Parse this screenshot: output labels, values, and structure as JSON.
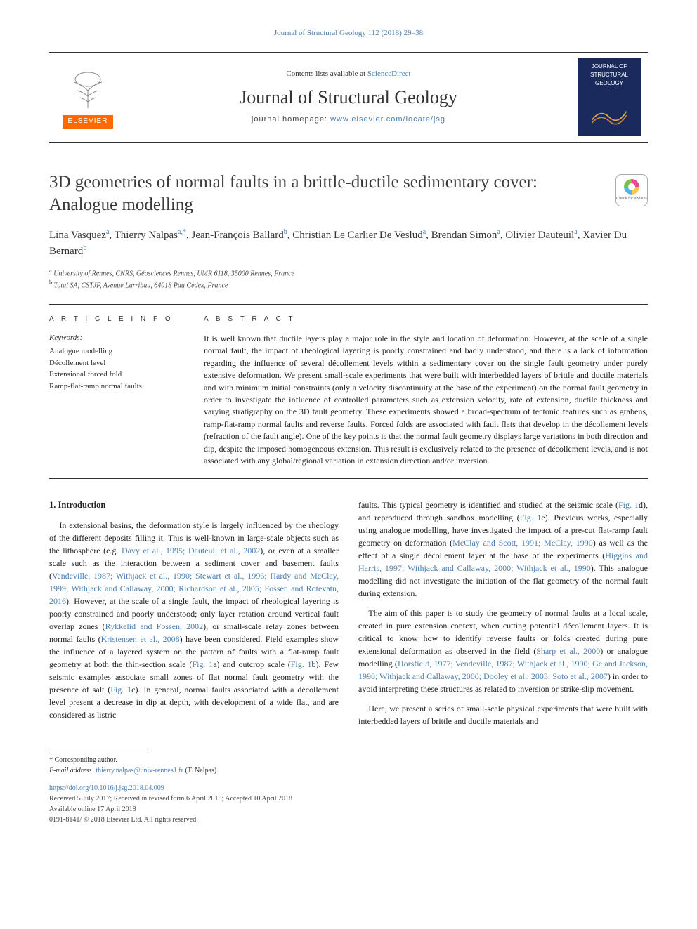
{
  "running_header": "Journal of Structural Geology 112 (2018) 29–38",
  "masthead": {
    "contents_prefix": "Contents lists available at ",
    "contents_link": "ScienceDirect",
    "journal_name": "Journal of Structural Geology",
    "homepage_label": "journal homepage: ",
    "homepage_url": "www.elsevier.com/locate/jsg",
    "publisher_label": "ELSEVIER",
    "cover_text": "JOURNAL OF STRUCTURAL GEOLOGY"
  },
  "check_updates_label": "Check for updates",
  "title": "3D geometries of normal faults in a brittle-ductile sedimentary cover: Analogue modelling",
  "authors_html": "Lina Vasquez<sup>a</sup>, Thierry Nalpas<sup>a,*</sup>, Jean-François Ballard<sup>b</sup>, Christian Le Carlier De Veslud<sup>a</sup>, Brendan Simon<sup>a</sup>, Olivier Dauteuil<sup>a</sup>, Xavier Du Bernard<sup>b</sup>",
  "affiliations": [
    {
      "sup": "a",
      "text": "University of Rennes, CNRS, Géosciences Rennes, UMR 6118, 35000 Rennes, France"
    },
    {
      "sup": "b",
      "text": "Total SA, CSTJF, Avenue Larribau, 64018 Pau Cedex, France"
    }
  ],
  "labels": {
    "article_info": "A R T I C L E  I N F O",
    "abstract": "A B S T R A C T",
    "keywords": "Keywords:"
  },
  "keywords": [
    "Analogue modelling",
    "Décollement level",
    "Extensional forced fold",
    "Ramp-flat-ramp normal faults"
  ],
  "abstract": "It is well known that ductile layers play a major role in the style and location of deformation. However, at the scale of a single normal fault, the impact of rheological layering is poorly constrained and badly understood, and there is a lack of information regarding the influence of several décollement levels within a sedimentary cover on the single fault geometry under purely extensive deformation. We present small-scale experiments that were built with interbedded layers of brittle and ductile materials and with minimum initial constraints (only a velocity discontinuity at the base of the experiment) on the normal fault geometry in order to investigate the influence of controlled parameters such as extension velocity, rate of extension, ductile thickness and varying stratigraphy on the 3D fault geometry. These experiments showed a broad-spectrum of tectonic features such as grabens, ramp-flat-ramp normal faults and reverse faults. Forced folds are associated with fault flats that develop in the décollement levels (refraction of the fault angle). One of the key points is that the normal fault geometry displays large variations in both direction and dip, despite the imposed homogeneous extension. This result is exclusively related to the presence of décollement levels, and is not associated with any global/regional variation in extension direction and/or inversion.",
  "section_heading": "1. Introduction",
  "col_left": {
    "p1a": "In extensional basins, the deformation style is largely influenced by the rheology of the different deposits filling it. This is well-known in large-scale objects such as the lithosphere (e.g. ",
    "p1_link1": "Davy et al., 1995; Dauteuil et al., 2002",
    "p1b": "), or even at a smaller scale such as the interaction between a sediment cover and basement faults (",
    "p1_link2": "Vendeville, 1987; Withjack et al., 1990; Stewart et al., 1996; Hardy and McClay, 1999; Withjack and Callaway, 2000; Richardson et al., 2005; Fossen and Rotevatn, 2016",
    "p1c": "). However, at the scale of a single fault, the impact of rheological layering is poorly constrained and poorly understood; only layer rotation around vertical fault overlap zones (",
    "p1_link3": "Rykkelid and Fossen, 2002",
    "p1d": "), or small-scale relay zones between normal faults (",
    "p1_link4": "Kristensen et al., 2008",
    "p1e": ") have been considered. Field examples show the influence of a layered system on the pattern of faults with a flat-ramp fault geometry at both the thin-section scale (",
    "p1_link5": "Fig. 1",
    "p1f": "a) and outcrop scale (",
    "p1_link6": "Fig. 1",
    "p1g": "b). Few seismic examples associate small zones of flat normal fault geometry with the presence of salt (",
    "p1_link7": "Fig. 1",
    "p1h": "c). In general, normal faults associated with a décollement level present a decrease in dip at depth, with development of a wide flat, and are considered as listric"
  },
  "col_right": {
    "p2a": "faults. This typical geometry is identified and studied at the seismic scale (",
    "p2_link1": "Fig. 1",
    "p2b": "d), and reproduced through sandbox modelling (",
    "p2_link2": "Fig. 1",
    "p2c": "e). Previous works, especially using analogue modelling, have investigated the impact of a pre-cut flat-ramp fault geometry on deformation (",
    "p2_link3": "McClay and Scott, 1991; McClay, 1990",
    "p2d": ") as well as the effect of a single décollement layer at the base of the experiments (",
    "p2_link4": "Higgins and Harris, 1997; Withjack and Callaway, 2000; Withjack et al., 1990",
    "p2e": "). This analogue modelling did not investigate the initiation of the flat geometry of the normal fault during extension.",
    "p3a": "The aim of this paper is to study the geometry of normal faults at a local scale, created in pure extension context, when cutting potential décollement layers. It is critical to know how to identify reverse faults or folds created during pure extensional deformation as observed in the field (",
    "p3_link1": "Sharp et al., 2000",
    "p3b": ") or analogue modelling (",
    "p3_link2": "Horsfield, 1977; Vendeville, 1987; Withjack et al., 1990; Ge and Jackson, 1998; Withjack and Callaway, 2000; Dooley et al., 2003; Soto et al., 2007",
    "p3c": ") in order to avoid interpreting these structures as related to inversion or strike-slip movement.",
    "p4": "Here, we present a series of small-scale physical experiments that were built with interbedded layers of brittle and ductile materials and"
  },
  "footnotes": {
    "corr": "* Corresponding author.",
    "email_label": "E-mail address: ",
    "email": "thierry.nalpas@univ-rennes1.fr",
    "email_suffix": " (T. Nalpas)."
  },
  "doi": {
    "url": "https://doi.org/10.1016/j.jsg.2018.04.009",
    "received": "Received 5 July 2017; Received in revised form 6 April 2018; Accepted 10 April 2018",
    "available": "Available online 17 April 2018",
    "copyright": "0191-8141/ © 2018 Elsevier Ltd. All rights reserved."
  },
  "colors": {
    "link": "#4a7fb0",
    "publisher_bg": "#ff6a00",
    "cover_bg": "#1a2a5c",
    "text": "#222222",
    "rule": "#333333"
  },
  "typography": {
    "title_fontsize_pt": 19,
    "journal_fontsize_pt": 20,
    "body_fontsize_pt": 9,
    "abstract_fontsize_pt": 9,
    "footnote_fontsize_pt": 7.5,
    "font_family": "Georgia/Charis-like serif"
  }
}
